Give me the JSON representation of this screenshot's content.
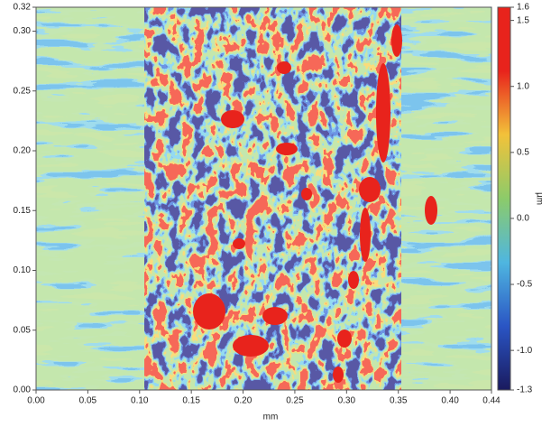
{
  "chart_data": {
    "type": "heatmap",
    "xlabel": "mm",
    "colorbar_label": "µm",
    "xlim": [
      0,
      0.44
    ],
    "xticks": [
      {
        "value": 0,
        "label": "0.00"
      },
      {
        "value": 0.05,
        "label": "0.05"
      },
      {
        "value": 0.1,
        "label": "0.10"
      },
      {
        "value": 0.15,
        "label": "0.15"
      },
      {
        "value": 0.2,
        "label": "0.20"
      },
      {
        "value": 0.25,
        "label": "0.25"
      },
      {
        "value": 0.3,
        "label": "0.30"
      },
      {
        "value": 0.35,
        "label": "0.35"
      },
      {
        "value": 0.4,
        "label": "0.40"
      },
      0.44
    ],
    "ylim": [
      0,
      0.32
    ],
    "yticks": [
      {
        "value": 0,
        "label": "0.00"
      },
      0.05,
      {
        "value": 0.1,
        "label": "0.10"
      },
      0.15,
      {
        "value": 0.2,
        "label": "0.20"
      },
      0.25,
      {
        "value": 0.3,
        "label": "0.30"
      },
      0.32
    ],
    "clim": [
      -1.3,
      1.6
    ],
    "cticks": [
      1.6,
      1.5,
      {
        "value": 1,
        "label": "1.0"
      },
      0.5,
      {
        "value": 0,
        "label": "0.0"
      },
      -0.5,
      {
        "value": -1,
        "label": "-1.0"
      },
      -1.3
    ],
    "colorscale": [
      "#1a1a5e",
      "#2a55c4",
      "#4fb6e0",
      "#8ccb6a",
      "#f2c23a",
      "#e8231c",
      "#e8231c"
    ]
  }
}
